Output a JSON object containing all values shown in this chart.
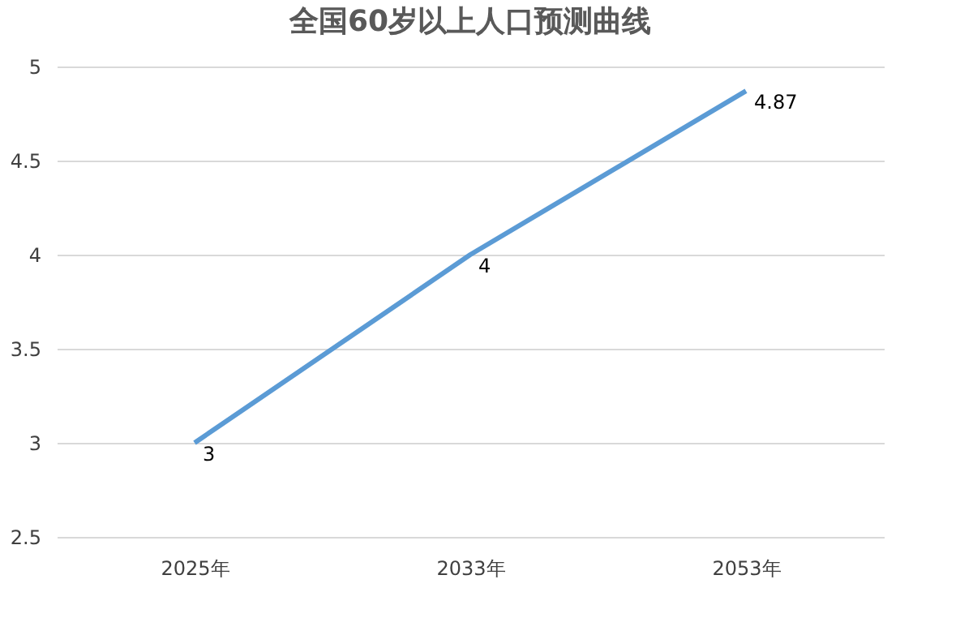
{
  "chart_data": {
    "type": "line",
    "title": "全国60岁以上人口预测曲线",
    "categories": [
      "2025年",
      "2033年",
      "2053年"
    ],
    "series": [
      {
        "color": "#5b9bd5",
        "values": [
          3,
          4,
          4.87
        ]
      }
    ],
    "ylim": [
      2.5,
      5
    ],
    "yticks": [
      2.5,
      3,
      3.5,
      4,
      4.5,
      5
    ],
    "grid": "y",
    "data_labels": true,
    "marker": "none",
    "line_style": "solid"
  }
}
